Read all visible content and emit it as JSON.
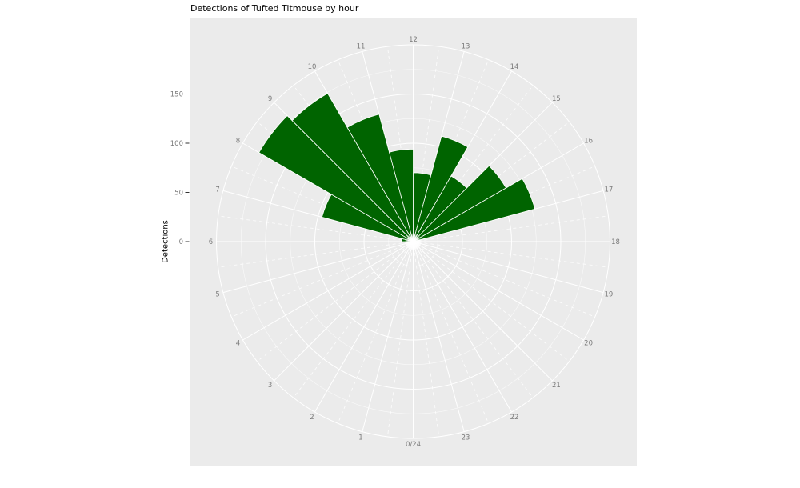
{
  "title": "Detections of Tufted Titmouse by hour",
  "y_axis": {
    "label": "Detections"
  },
  "chart_data": {
    "type": "polar_bar",
    "title": "Detections of Tufted Titmouse by hour",
    "ylabel": "Detections",
    "theta": "hour of day, 0-24 clockwise, 12 at top, 0/24 at bottom",
    "hours": [
      0,
      1,
      2,
      3,
      4,
      5,
      6,
      7,
      8,
      9,
      10,
      11,
      12,
      13,
      14,
      15,
      16,
      17,
      18,
      19,
      20,
      21,
      22,
      23
    ],
    "values": [
      0,
      0,
      0,
      0,
      0,
      0,
      12,
      96,
      181,
      174,
      134,
      94,
      70,
      111,
      77,
      109,
      128,
      0,
      0,
      0,
      0,
      0,
      0,
      0
    ],
    "hour_labels": [
      "0/24",
      "1",
      "2",
      "3",
      "4",
      "5",
      "6",
      "7",
      "8",
      "9",
      "10",
      "11",
      "12",
      "13",
      "14",
      "15",
      "16",
      "17",
      "18",
      "19",
      "20",
      "21",
      "22",
      "23"
    ],
    "radial_axis": {
      "ticks": [
        0,
        50,
        100,
        150
      ],
      "max": 200,
      "minor_step": 25
    },
    "grid": {
      "major_spokes_every_hour": true,
      "minor_spokes_dashed_half_hour": true
    },
    "legend": "none",
    "colors": {
      "bar": "#006400",
      "bar_border": "#ffffff",
      "panel": "#ebebeb",
      "grid": "#ffffff",
      "axis_text": "#7b7b7b",
      "tick_mark": "#333333",
      "title_text": "#000000",
      "background": "#ffffff"
    }
  }
}
